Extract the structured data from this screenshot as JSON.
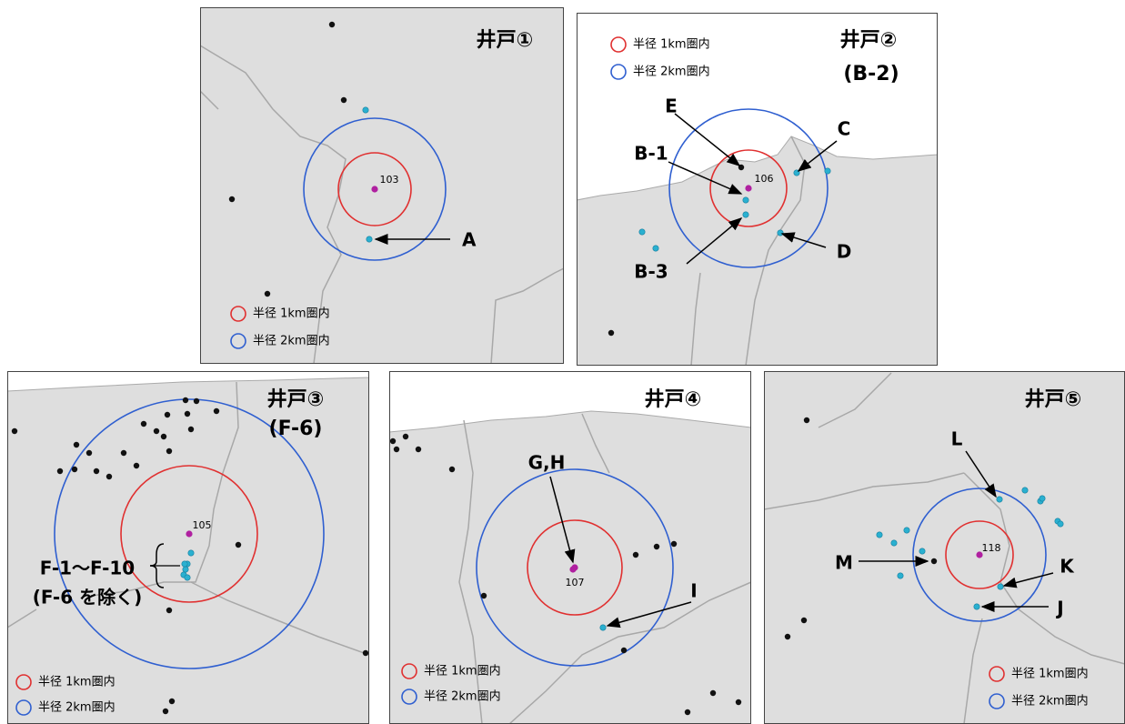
{
  "panels": [
    {
      "title": "井戸①",
      "center_label": "103",
      "legend": [
        "半径 1km圏内",
        "半径 2km圏内"
      ],
      "labels": [
        "A"
      ]
    },
    {
      "title": "井戸②",
      "subtitle": "(B-2)",
      "center_label": "106",
      "legend": [
        "半径 1km圏内",
        "半径 2km圏内"
      ],
      "labels": [
        "E",
        "C",
        "B-1",
        "B-3",
        "D"
      ]
    },
    {
      "title": "井戸③",
      "subtitle": "(F-6)",
      "center_label": "105",
      "legend": [
        "半径 1km圏内",
        "半径 2km圏内"
      ],
      "labels": [
        "F-1～F-10",
        "(F-6 を除く)"
      ]
    },
    {
      "title": "井戸④",
      "center_label": "107",
      "legend": [
        "半径 1km圏内",
        "半径 2km圏内"
      ],
      "labels": [
        "G,H",
        "I"
      ]
    },
    {
      "title": "井戸⑤",
      "center_label": "118",
      "legend": [
        "半径 1km圏内",
        "半径 2km圏内"
      ],
      "labels": [
        "L",
        "M",
        "K",
        "J"
      ]
    }
  ]
}
